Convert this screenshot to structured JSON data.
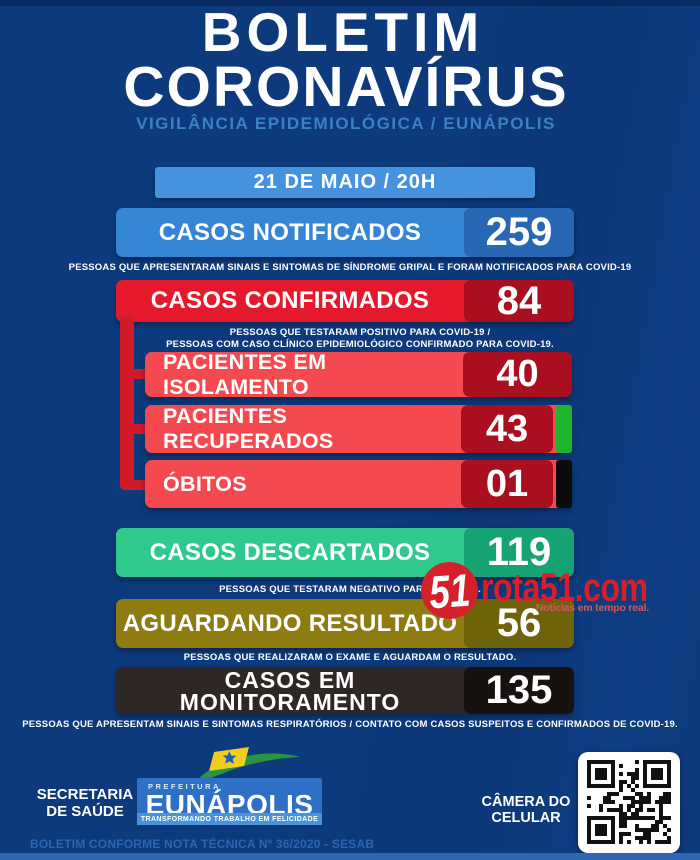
{
  "header": {
    "title_line1": "BOLETIM",
    "title_line2": "CORONAVÍRUS",
    "subtitle": "VIGILÂNCIA EPIDEMIOLÓGICA / EUNÁPOLIS",
    "date_badge": "21 DE MAIO / 20H"
  },
  "stats": {
    "notificados": {
      "label": "CASOS NOTIFICADOS",
      "value": "259",
      "caption": "PESSOAS QUE APRESENTARAM SINAIS E SINTOMAS DE SÍNDROME GRIPAL E FORAM NOTIFICADOS PARA COVID-19"
    },
    "confirmados": {
      "label": "CASOS CONFIRMADOS",
      "value": "84",
      "caption_line1": "PESSOAS QUE TESTARAM POSITIVO PARA COVID-19 /",
      "caption_line2": "PESSOAS COM CASO CLÍNICO EPIDEMIOLÓGICO CONFIRMADO PARA COVID-19."
    },
    "isolamento": {
      "label": "PACIENTES EM ISOLAMENTO",
      "value": "40"
    },
    "recuperados": {
      "label": "PACIENTES RECUPERADOS",
      "value": "43"
    },
    "obitos": {
      "label": "ÓBITOS",
      "value": "01"
    },
    "descartados": {
      "label": "CASOS DESCARTADOS",
      "value": "119",
      "caption": "PESSOAS QUE TESTARAM NEGATIVO PARA COVID-19."
    },
    "aguardando": {
      "label": "AGUARDANDO RESULTADO",
      "value": "56",
      "caption": "PESSOAS QUE REALIZARAM O EXAME E AGUARDAM O RESULTADO."
    },
    "monitoramento": {
      "label_line1": "CASOS EM",
      "label_line2": "MONITORAMENTO",
      "value": "135",
      "caption": "PESSOAS QUE APRESENTAM SINAIS E SINTOMAS RESPIRATÓRIOS / CONTATO COM CASOS SUSPEITOS  E CONFIRMADOS DE COVID-19."
    }
  },
  "watermark": {
    "badge": "51",
    "site": "rota51.com",
    "tagline": "Notícias em tempo real."
  },
  "footer": {
    "secretaria_line1": "SECRETARIA",
    "secretaria_line2": "DE SAÚDE",
    "logo": {
      "top": "PREFEITURA",
      "name": "EUNÁPOLIS",
      "tagline": "TRANSFORMANDO TRABALHO EM FELICIDADE"
    },
    "camera_line1": "CÂMERA DO",
    "camera_line2": "CELULAR",
    "note": "BOLETIM CONFORME NOTA TÉCNICA Nº 36/2020 - SESAB"
  },
  "colors": {
    "background_navy": "#0d3a7c",
    "date_badge_blue": "#4593e0",
    "notified_blue": "#3585d6",
    "notified_value_blue": "#2767b3",
    "confirmed_red": "#e6192c",
    "value_dark_red": "#a90f1e",
    "sub_bar_red": "#f4494f",
    "connector_red": "#d11a2a",
    "recovered_strip_green": "#1eb42c",
    "deaths_strip_black": "#0c0a0a",
    "discarded_green": "#2fc98d",
    "discarded_value_green": "#17a273",
    "awaiting_olive": "#8e7c10",
    "awaiting_value_olive": "#6f6309",
    "monitoring_dark": "#2e2725",
    "monitoring_value_black": "#171110",
    "subtitle_blue": "#3d80c4",
    "watermark_red": "#d5202b",
    "logo_box_blue": "#2e70c5"
  }
}
